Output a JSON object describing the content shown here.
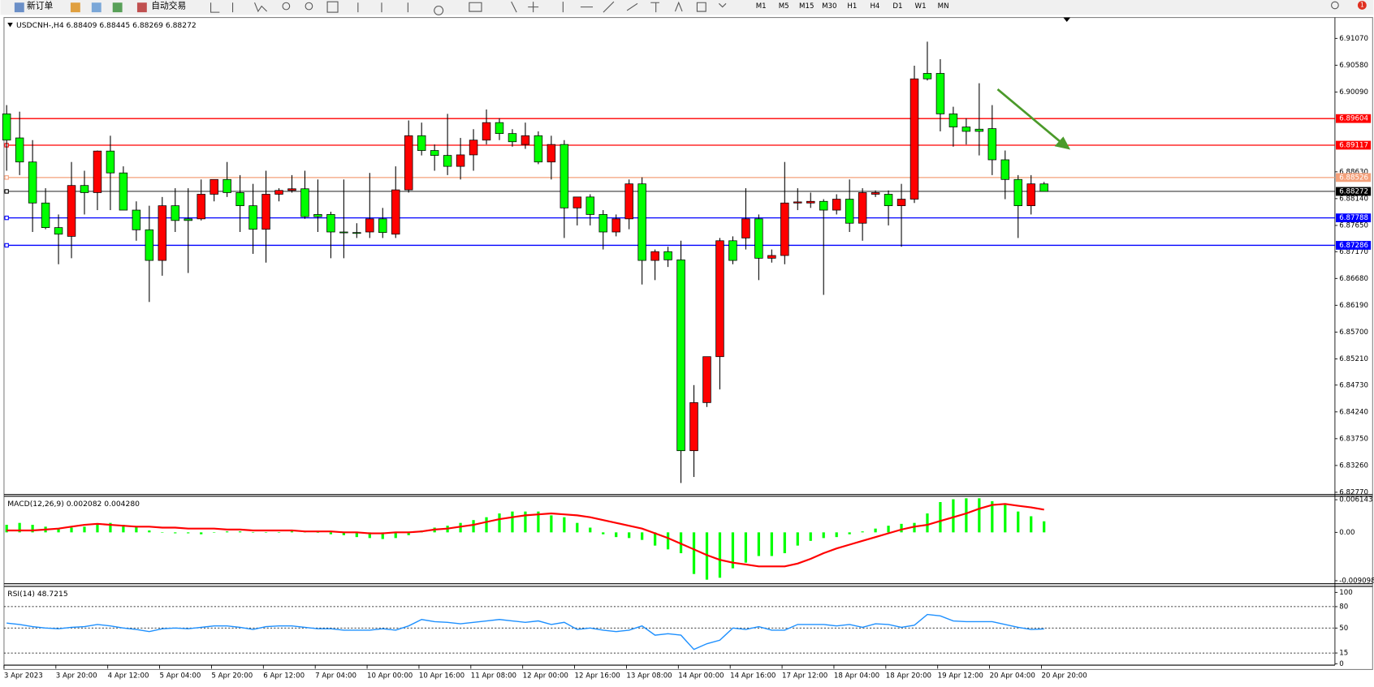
{
  "toolbar": {
    "new_order": "新订单",
    "auto_trading": "自动交易",
    "timeframes": [
      "M1",
      "M5",
      "M15",
      "M30",
      "H1",
      "H4",
      "D1",
      "W1",
      "MN"
    ],
    "alerts": 1
  },
  "chart_data": [
    {
      "type": "candlestick",
      "title": "USDCNH-,H4  6.88409 6.88445 6.88269 6.88272",
      "up_color": "#ff0000",
      "down_color": "#00ff00",
      "categories": [
        "3 Apr 2023",
        null,
        null,
        null,
        "3 Apr 20:00",
        null,
        null,
        null,
        "4 Apr 12:00",
        null,
        null,
        null,
        "5 Apr 04:00",
        null,
        null,
        null,
        "5 Apr 20:00",
        null,
        null,
        null,
        "6 Apr 12:00",
        null,
        null,
        null,
        "7 Apr 04:00",
        null,
        null,
        null,
        "10 Apr 00:00",
        null,
        null,
        null,
        "10 Apr 16:00",
        null,
        null,
        null,
        "11 Apr 08:00",
        null,
        null,
        null,
        "12 Apr 00:00",
        null,
        null,
        null,
        "12 Apr 16:00",
        null,
        null,
        null,
        "13 Apr 08:00",
        null,
        null,
        null,
        "14 Apr 00:00",
        null,
        null,
        null,
        "14 Apr 16:00",
        null,
        null,
        null,
        "17 Apr 12:00",
        null,
        null,
        null,
        "18 Apr 04:00",
        null,
        null,
        null,
        "18 Apr 20:00",
        null,
        null,
        null,
        "19 Apr 12:00",
        null,
        null,
        null,
        "20 Apr 04:00",
        null,
        null,
        null,
        "20 Apr 20:00"
      ],
      "open": [
        6.8969,
        6.8925,
        6.8881,
        6.8806,
        6.8761,
        6.8745,
        6.8838,
        6.8825,
        6.8901,
        6.8861,
        6.8793,
        6.8757,
        6.8701,
        6.8801,
        6.8777,
        6.8777,
        6.8822,
        6.8849,
        6.8825,
        6.8801,
        6.8758,
        6.8822,
        6.8829,
        6.8832,
        6.8785,
        6.8785,
        6.8753,
        6.8752,
        6.8753,
        6.8777,
        6.8749,
        6.883,
        6.8929,
        6.8902,
        6.8893,
        6.8873,
        6.8894,
        6.8921,
        6.8953,
        6.8933,
        6.8913,
        6.8929,
        6.8881,
        6.8913,
        6.8797,
        6.8817,
        6.8785,
        6.8753,
        6.8777,
        6.8841,
        6.8701,
        6.8717,
        6.8702,
        6.8353,
        6.8441,
        6.8525,
        6.8737,
        6.8742,
        6.8777,
        6.8705,
        6.871,
        6.8806,
        6.8806,
        6.8809,
        6.8793,
        6.8813,
        6.8769,
        6.8822,
        6.8822,
        6.8801,
        6.8813,
        6.9043,
        6.9043,
        6.8969,
        6.8945,
        6.8941,
        6.8942,
        6.8885,
        6.8849,
        6.8801,
        6.88409
      ],
      "high": [
        6.8985,
        6.8973,
        6.8921,
        6.8833,
        6.8785,
        6.8881,
        6.8865,
        6.8902,
        6.8929,
        6.8873,
        6.8809,
        6.8801,
        6.8817,
        6.8833,
        6.8833,
        6.8849,
        6.8849,
        6.8881,
        6.8857,
        6.8841,
        6.8865,
        6.8833,
        6.8857,
        6.8865,
        6.8849,
        6.879,
        6.8849,
        6.8769,
        6.8861,
        6.8797,
        6.8873,
        6.8957,
        6.8953,
        6.8913,
        6.8969,
        6.8925,
        6.8941,
        6.8977,
        6.8961,
        6.8941,
        6.8953,
        6.8937,
        6.8929,
        6.8921,
        6.8817,
        6.8822,
        6.8793,
        6.8785,
        6.8849,
        6.8853,
        6.8721,
        6.8726,
        6.8737,
        6.8473,
        6.8525,
        6.8742,
        6.8745,
        6.8833,
        6.8785,
        6.8721,
        6.8881,
        6.8833,
        6.8825,
        6.8813,
        6.8822,
        6.8849,
        6.8833,
        6.8829,
        6.8829,
        6.8841,
        6.9057,
        6.9101,
        6.9069,
        6.8982,
        6.8961,
        6.9025,
        6.8985,
        6.8902,
        6.8857,
        6.8857,
        6.88445
      ],
      "low": [
        6.8865,
        6.8857,
        6.8753,
        6.8758,
        6.8694,
        6.8705,
        6.8785,
        6.8793,
        6.8793,
        6.8793,
        6.8737,
        6.8625,
        6.8673,
        6.8753,
        6.8678,
        6.8774,
        6.8809,
        6.8817,
        6.8753,
        6.8713,
        6.8697,
        6.8809,
        6.8825,
        6.8777,
        6.8753,
        6.8705,
        6.8705,
        6.8742,
        6.8742,
        6.8742,
        6.8742,
        6.8825,
        6.8893,
        6.8865,
        6.8857,
        6.8849,
        6.8865,
        6.8913,
        6.8921,
        6.8909,
        6.8905,
        6.8877,
        6.8849,
        6.8742,
        6.8765,
        6.8765,
        6.8721,
        6.8745,
        6.8758,
        6.8657,
        6.8665,
        6.8689,
        6.8294,
        6.8305,
        6.8433,
        6.8465,
        6.8694,
        6.8721,
        6.8665,
        6.8697,
        6.8694,
        6.8793,
        6.8797,
        6.8638,
        6.8785,
        6.8753,
        6.8737,
        6.8817,
        6.8765,
        6.8726,
        6.8806,
        6.903,
        6.8937,
        6.8909,
        6.8913,
        6.8893,
        6.8857,
        6.8813,
        6.8742,
        6.8785,
        6.88269
      ],
      "close": [
        6.8921,
        6.8881,
        6.8806,
        6.8761,
        6.8749,
        6.8838,
        6.8825,
        6.8901,
        6.8861,
        6.8793,
        6.8757,
        6.8701,
        6.8801,
        6.8774,
        6.8774,
        6.8822,
        6.8849,
        6.8825,
        6.8801,
        6.8758,
        6.8822,
        6.8829,
        6.8832,
        6.8781,
        6.8781,
        6.8753,
        6.8752,
        6.8751,
        6.8777,
        6.8752,
        6.883,
        6.8929,
        6.8902,
        6.8893,
        6.8873,
        6.8894,
        6.8921,
        6.8953,
        6.8933,
        6.8918,
        6.8929,
        6.8881,
        6.8913,
        6.8797,
        6.8817,
        6.8785,
        6.8753,
        6.8777,
        6.8841,
        6.8701,
        6.8717,
        6.8702,
        6.8353,
        6.8441,
        6.8525,
        6.8737,
        6.8701,
        6.8777,
        6.8705,
        6.871,
        6.8806,
        6.8808,
        6.8809,
        6.8793,
        6.8813,
        6.8769,
        6.8825,
        6.8825,
        6.8801,
        6.8813,
        6.9033,
        6.9033,
        6.8969,
        6.8945,
        6.8937,
        6.8937,
        6.8885,
        6.8849,
        6.8801,
        6.8841,
        6.88272
      ],
      "ylim": [
        6.8273,
        6.9142
      ],
      "yticks": [
        {
          "value": 6.9107,
          "label": "6.91070"
        },
        {
          "value": 6.9058,
          "label": "6.90580"
        },
        {
          "value": 6.9009,
          "label": "6.90090"
        },
        {
          "value": 6.8863,
          "label": "6.88630"
        },
        {
          "value": 6.8814,
          "label": "6.88140"
        },
        {
          "value": 6.8765,
          "label": "6.87650"
        },
        {
          "value": 6.8717,
          "label": "6.87170"
        },
        {
          "value": 6.8668,
          "label": "6.86680"
        },
        {
          "value": 6.8619,
          "label": "6.86190"
        },
        {
          "value": 6.857,
          "label": "6.85700"
        },
        {
          "value": 6.8521,
          "label": "6.85210"
        },
        {
          "value": 6.8473,
          "label": "6.84730"
        },
        {
          "value": 6.8424,
          "label": "6.84240"
        },
        {
          "value": 6.8375,
          "label": "6.83750"
        },
        {
          "value": 6.8326,
          "label": "6.83260"
        },
        {
          "value": 6.8277,
          "label": "6.82770"
        }
      ],
      "lines": [
        {
          "value": 6.89604,
          "color": "#ff0000"
        },
        {
          "value": 6.89117,
          "color": "#ff0000"
        },
        {
          "value": 6.88526,
          "color": "#f4a07a"
        },
        {
          "value": 6.88272,
          "color": "#000000"
        },
        {
          "value": 6.87788,
          "color": "#0000ff"
        },
        {
          "value": 6.87286,
          "color": "#0000ff"
        }
      ]
    },
    {
      "type": "macd",
      "title": "MACD(12,26,9) 0.002082 0.004280",
      "ylim": [
        -0.0095,
        0.0068
      ],
      "yticks": [
        0.006143,
        {
          "value": 0,
          "label": "0.00"
        },
        -0.009098
      ],
      "series": [
        {
          "color": "#00ff00",
          "values": [
            0.00142,
            0.00178,
            0.00142,
            0.00107,
            0.00071,
            0.00089,
            0.00107,
            0.00142,
            0.00178,
            0.00142,
            0.00107,
            0.00036,
            0,
            -0.00018,
            -0.00018,
            -0.00036,
            0,
            0.00018,
            0.00018,
            0,
            0,
            0,
            0.00018,
            0.00018,
            0,
            -0.00036,
            -0.00053,
            -0.00089,
            -0.00107,
            -0.00125,
            -0.00107,
            -0.00053,
            0.00036,
            0.00089,
            0.00125,
            0.00178,
            0.00231,
            0.00285,
            0.00356,
            0.00392,
            0.00392,
            0.00392,
            0.0032,
            0.00285,
            0.00178,
            0.00089,
            -0.00036,
            -0.00089,
            -0.00107,
            -0.00142,
            -0.00249,
            -0.0032,
            -0.00392,
            -0.00783,
            -0.0089,
            -0.00854,
            -0.00676,
            -0.0057,
            -0.00445,
            -0.00445,
            -0.00392,
            -0.00249,
            -0.0016,
            -0.00107,
            -0.00089,
            -0.00036,
            0.00018,
            0.00071,
            0.00125,
            0.0016,
            0.00178,
            0.00356,
            0.0057,
            0.00623,
            0.00641,
            0.00641,
            0.00587,
            0.00534,
            0.00392,
            0.00303,
            0.002082
          ]
        },
        {
          "color": "#ff0000",
          "values": [
            0.00036,
            0.00036,
            0.00036,
            0.00053,
            0.00071,
            0.00107,
            0.00142,
            0.0016,
            0.00142,
            0.00125,
            0.00107,
            0.00107,
            0.00089,
            0.00089,
            0.00071,
            0.00071,
            0.00071,
            0.00053,
            0.00053,
            0.00036,
            0.00036,
            0.00036,
            0.00036,
            0.00018,
            0.00018,
            0.00018,
            0,
            0,
            -0.00018,
            -0.00018,
            0,
            0,
            0.00018,
            0.00053,
            0.00071,
            0.00107,
            0.00142,
            0.00196,
            0.00249,
            0.00285,
            0.0032,
            0.00338,
            0.00356,
            0.00338,
            0.0032,
            0.00285,
            0.00231,
            0.00178,
            0.00125,
            0.00071,
            -0.00018,
            -0.00107,
            -0.00214,
            -0.0032,
            -0.00427,
            -0.00516,
            -0.0057,
            -0.00605,
            -0.00641,
            -0.00641,
            -0.00641,
            -0.00587,
            -0.00498,
            -0.00392,
            -0.00303,
            -0.00231,
            -0.0016,
            -0.00089,
            -0.00018,
            0.00053,
            0.00107,
            0.00142,
            0.00214,
            0.00285,
            0.00356,
            0.00445,
            0.00516,
            0.00534,
            0.005,
            0.0047,
            0.00428
          ]
        }
      ]
    },
    {
      "type": "line",
      "title": "RSI(14) 48.7215",
      "color": "#1e90ff",
      "ylim": [
        -2,
        106
      ],
      "yticks": [
        100,
        80,
        50,
        15,
        0
      ],
      "levels": [
        80,
        50,
        15
      ],
      "values": [
        57,
        55,
        52,
        50,
        49,
        51,
        52,
        55,
        53,
        50,
        48,
        45,
        49,
        50,
        49,
        51,
        53,
        53,
        51,
        48,
        52,
        53,
        53,
        51,
        49,
        49,
        47,
        47,
        47,
        49,
        47,
        53,
        62,
        59,
        58,
        56,
        58,
        60,
        62,
        60,
        58,
        60,
        55,
        58,
        48,
        50,
        47,
        45,
        47,
        53,
        40,
        42,
        40,
        20,
        28,
        33,
        50,
        48,
        52,
        47,
        47,
        55,
        55,
        55,
        53,
        55,
        51,
        56,
        55,
        51,
        54,
        69,
        67,
        60,
        59,
        59,
        59,
        55,
        51,
        48,
        48.7215
      ]
    }
  ]
}
